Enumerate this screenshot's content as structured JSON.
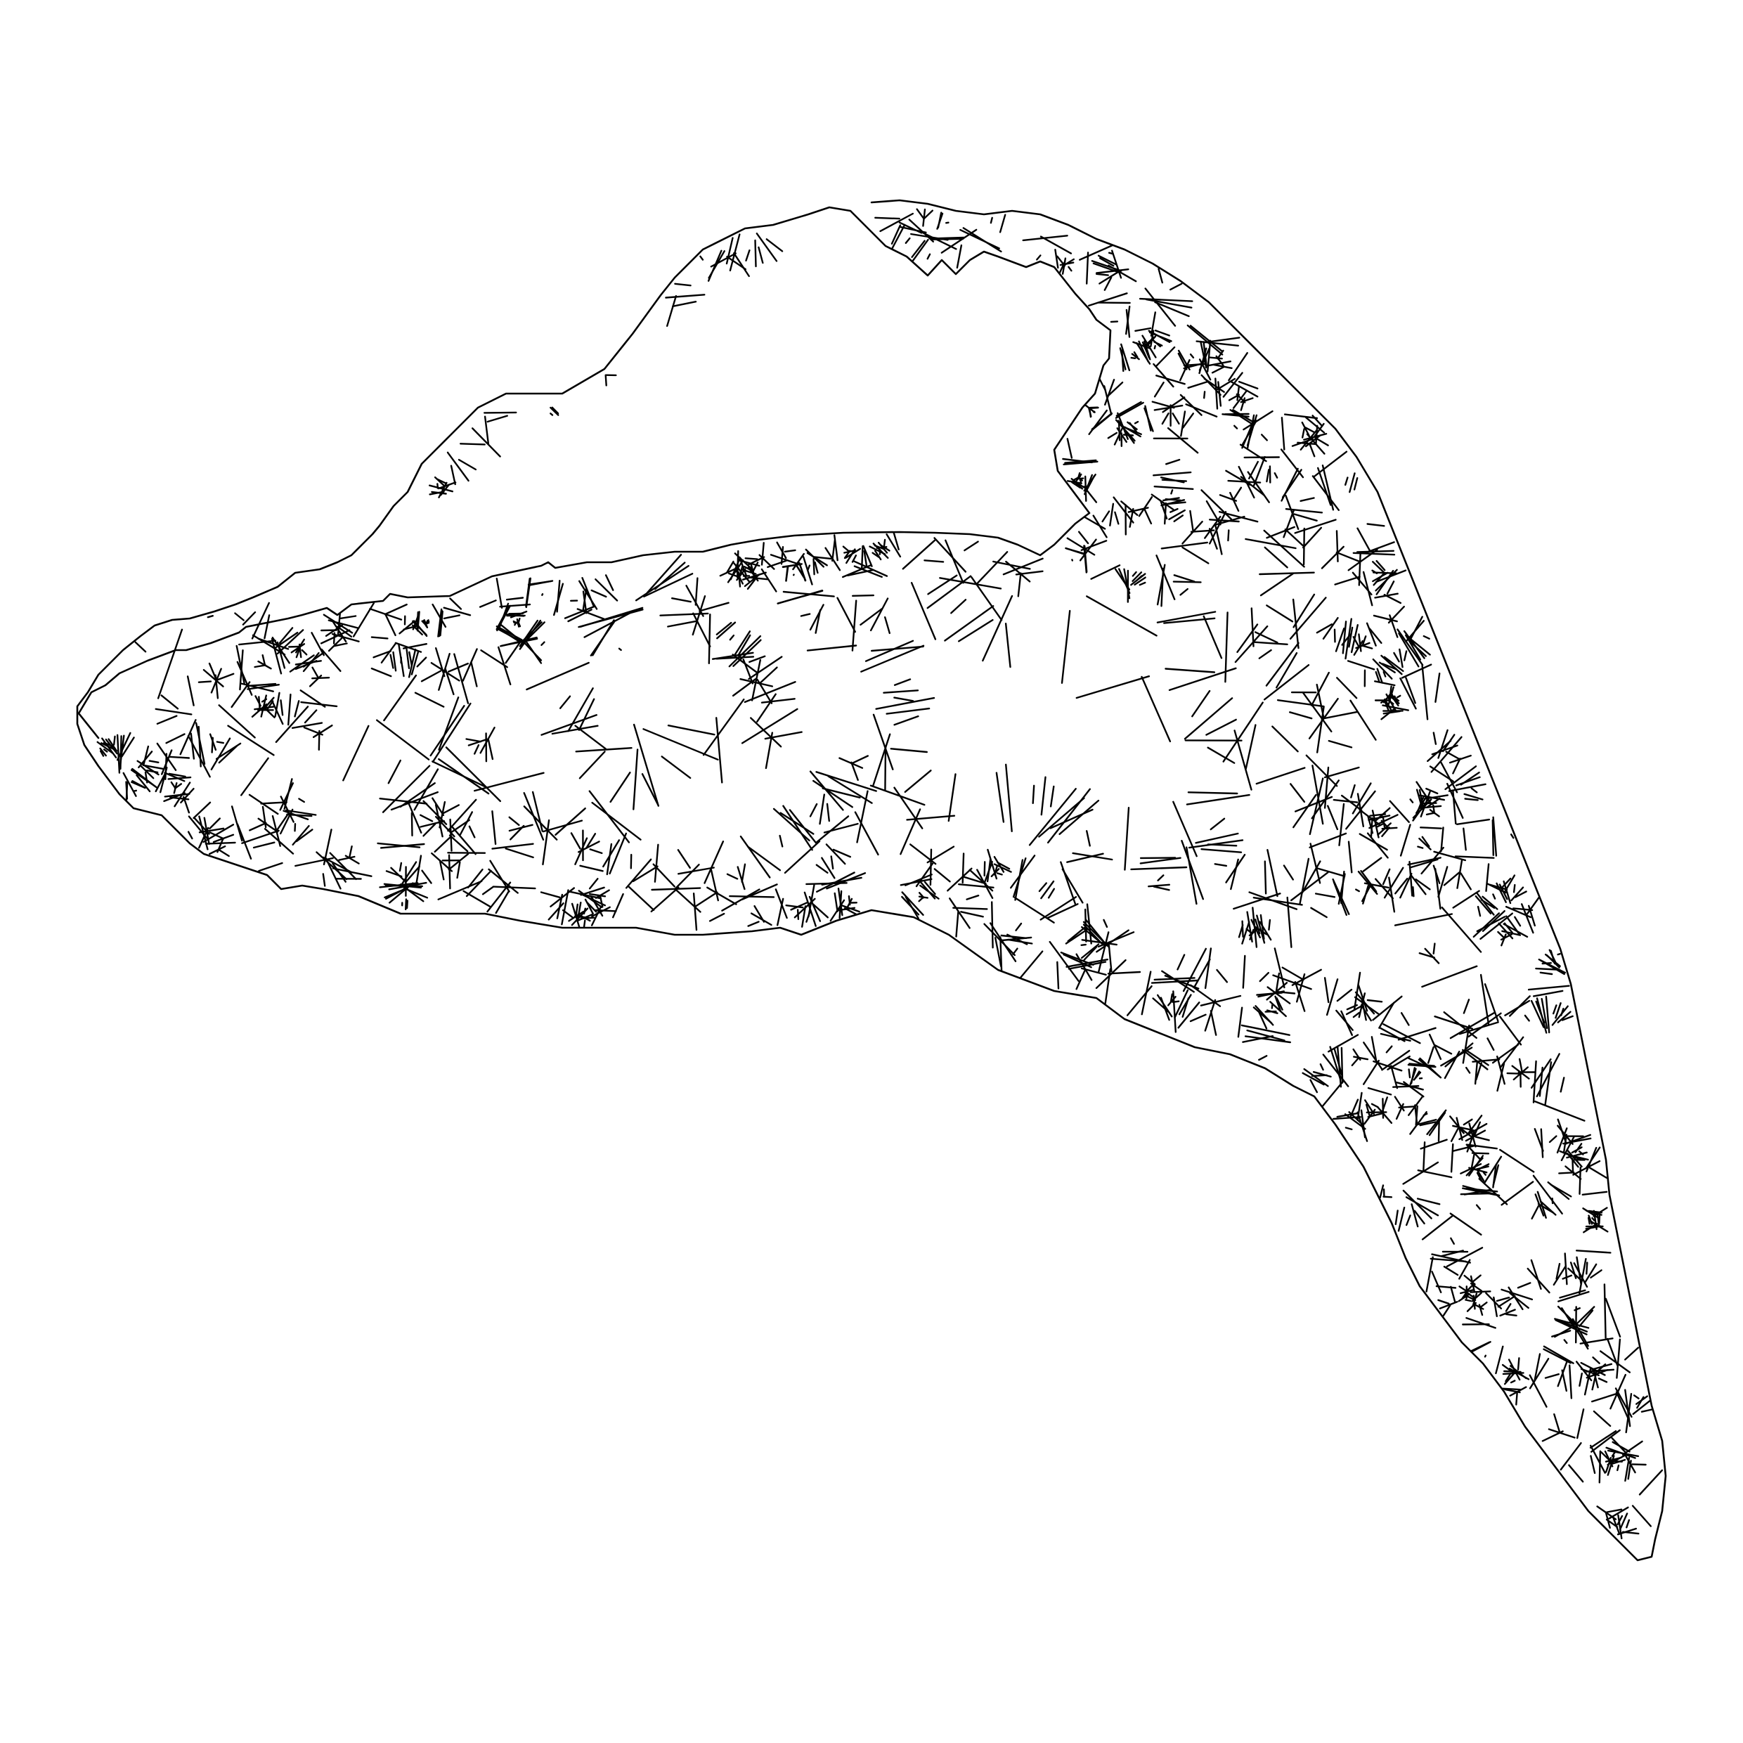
{
  "diagram": {
    "type": "polygon-mesh",
    "background_color": "#ffffff",
    "line_color": "#000000",
    "labels": []
  }
}
